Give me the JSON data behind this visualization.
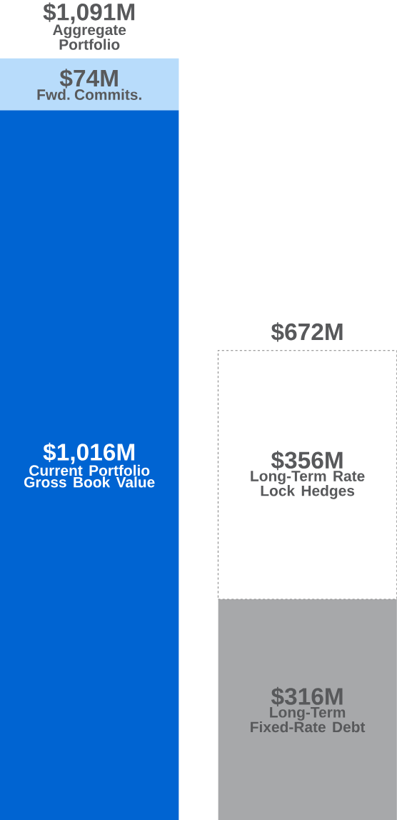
{
  "chart_data": {
    "type": "bar",
    "stacked": true,
    "categories": [
      null,
      null
    ],
    "series": [
      {
        "name": "Current Portfolio Gross Book Value",
        "color": "#0064d2",
        "values": [
          1016,
          null
        ],
        "value_labels": [
          "$1,016M",
          null
        ]
      },
      {
        "name": "Fwd. Commits.",
        "color": "#b8dcfb",
        "values": [
          74,
          null
        ],
        "value_labels": [
          "$74M",
          null
        ]
      },
      {
        "name": "Long-Term Fixed-Rate Debt",
        "color": "#a7a8aa",
        "values": [
          null,
          316
        ],
        "value_labels": [
          null,
          "$316M"
        ]
      },
      {
        "name": "Long-Term Rate Lock Hedges",
        "color": "#ffffff",
        "line_style": "dashed",
        "values": [
          null,
          356
        ],
        "value_labels": [
          null,
          "$356M"
        ]
      }
    ],
    "totals": [
      "$1,091M",
      "$672M"
    ],
    "annotations": [
      "Aggregate Portfolio"
    ]
  }
}
